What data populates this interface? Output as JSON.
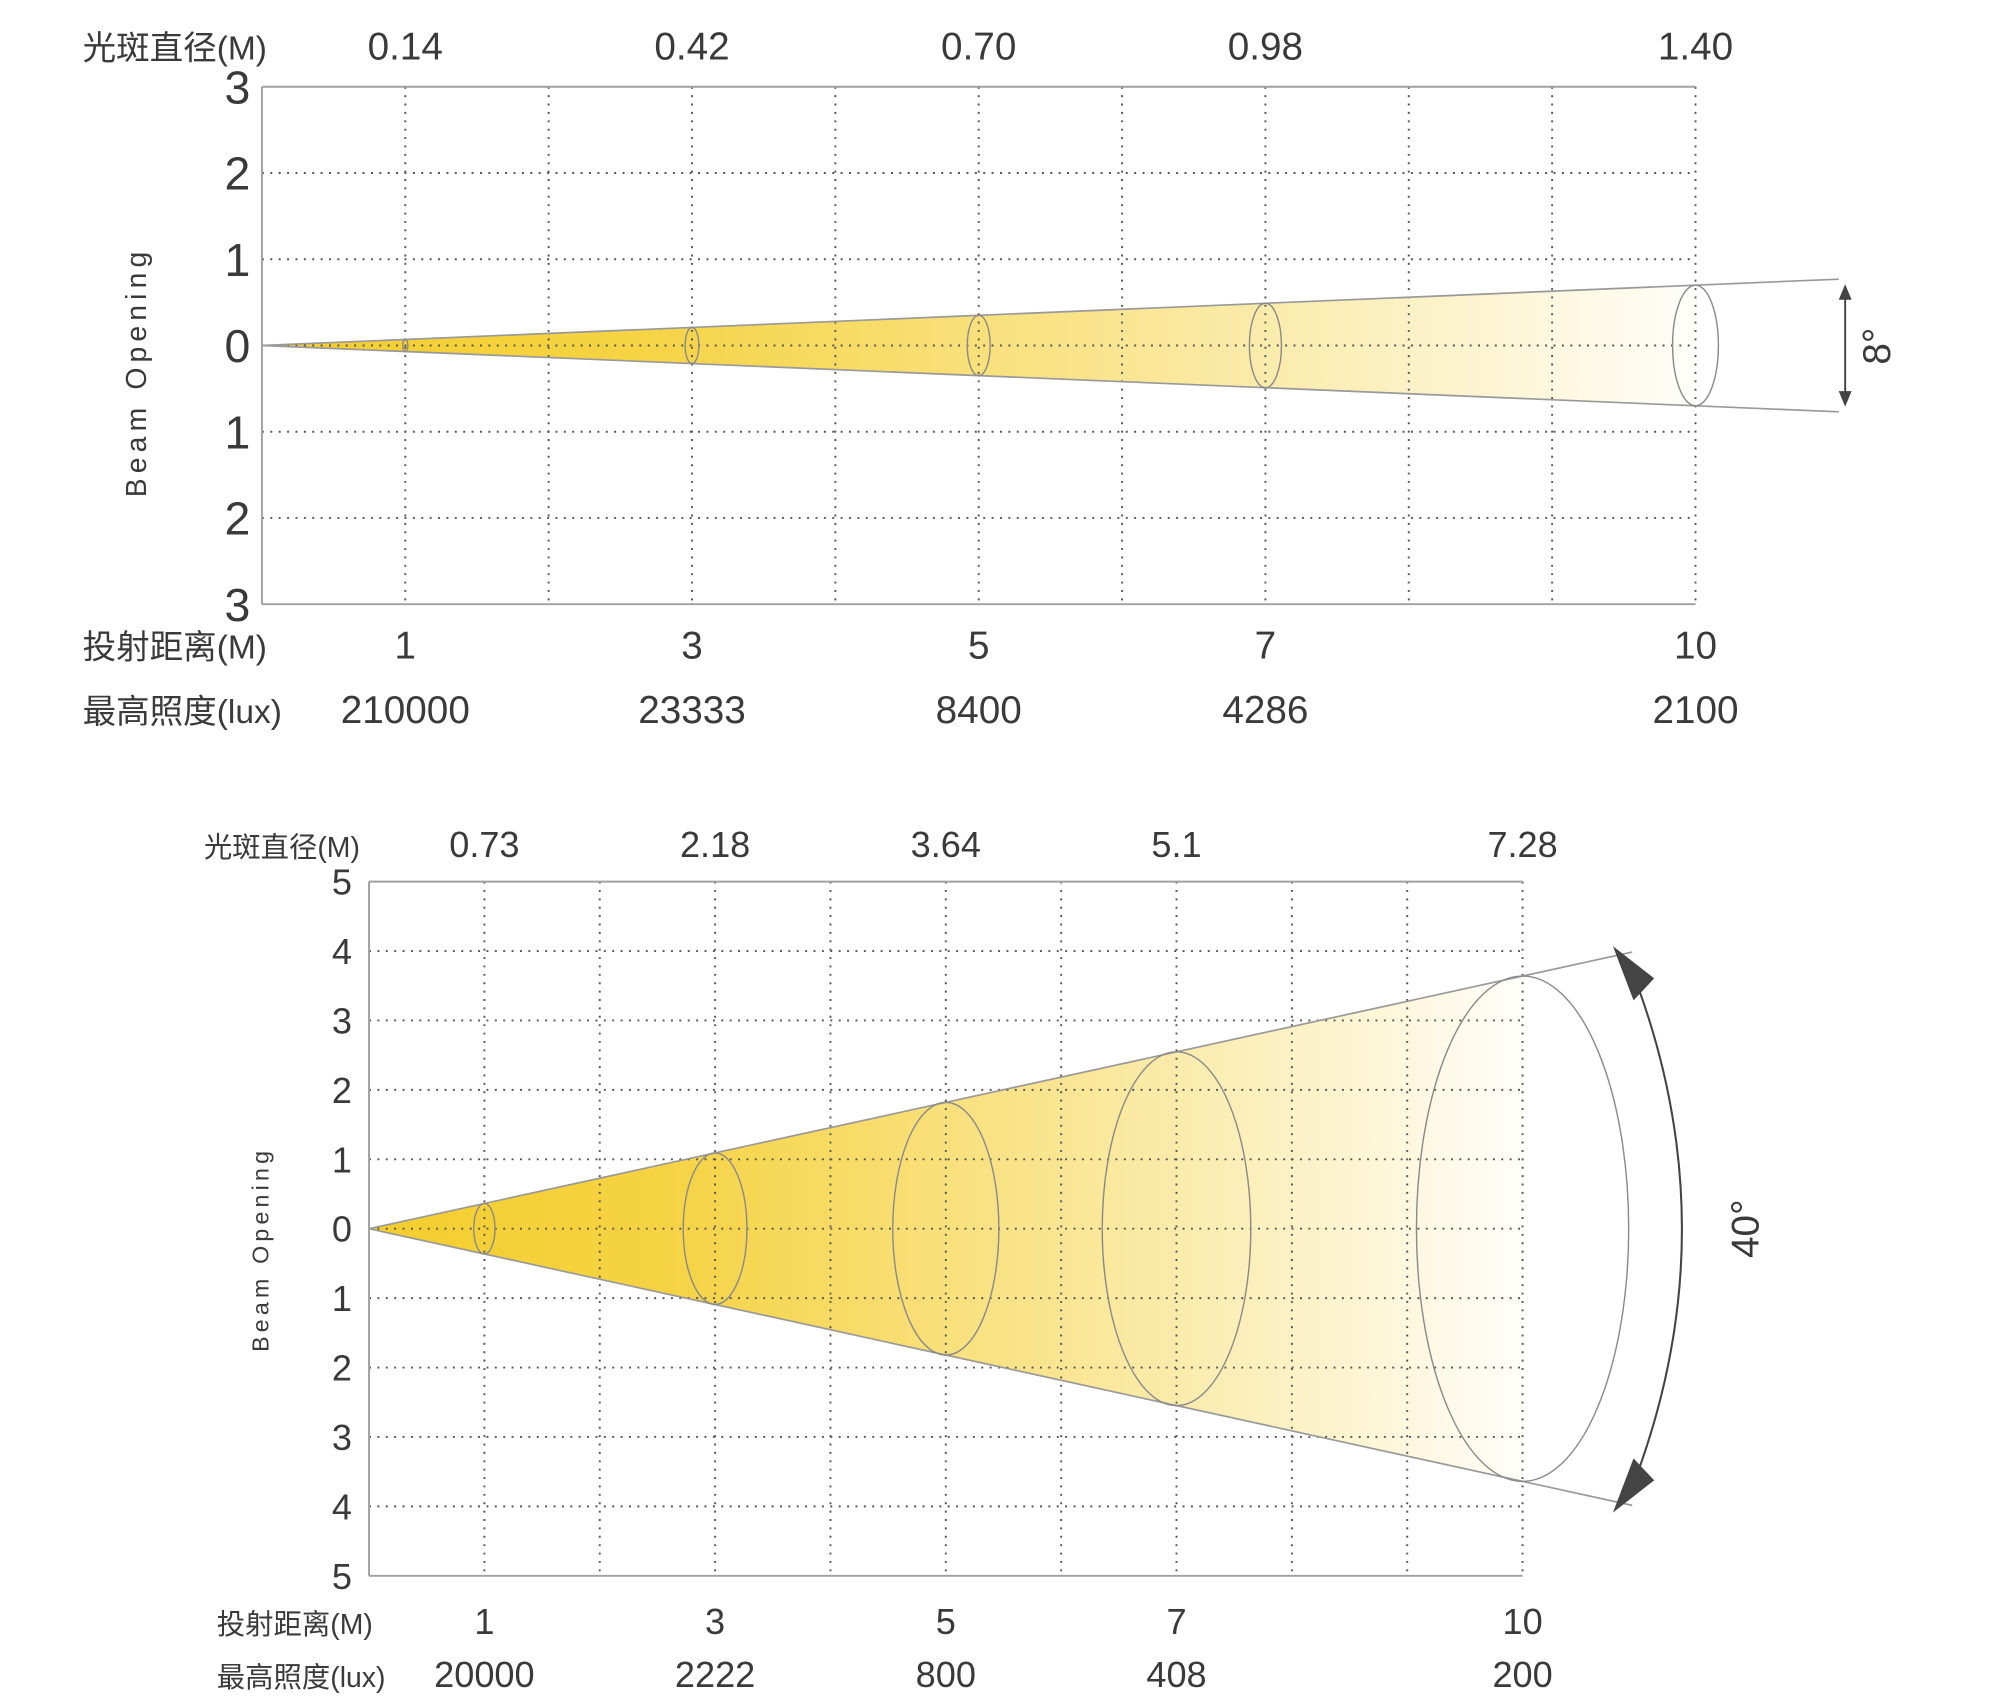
{
  "chart_data": [
    {
      "type": "beam-diagram",
      "spot_label": "光斑直径(M)",
      "distance_label": "投射距离(M)",
      "lux_label": "最高照度(lux)",
      "ylabel": "Beam Opening",
      "beam_angle_label": "8°",
      "beam_angle_deg": 8,
      "xlim": [
        0,
        10
      ],
      "ylim": [
        -3,
        3
      ],
      "y_ticks": [
        "3",
        "2",
        "1",
        "0",
        "1",
        "2",
        "3"
      ],
      "distances": [
        1,
        3,
        5,
        7,
        10
      ],
      "distance_labels": [
        "1",
        "3",
        "5",
        "7",
        "10"
      ],
      "spot_diameters": [
        "0.14",
        "0.42",
        "0.70",
        "0.98",
        "1.40"
      ],
      "lux": [
        "210000",
        "23333",
        "8400",
        "4286",
        "2100"
      ],
      "grid": true,
      "colors": {
        "beam_start": "#F4CE2E",
        "beam_end": "#FFFFFF",
        "grid": "#555555",
        "axis": "#A0A0A0"
      }
    },
    {
      "type": "beam-diagram",
      "spot_label": "光斑直径(M)",
      "distance_label": "投射距离(M)",
      "lux_label": "最高照度(lux)",
      "ylabel": "Beam Opening",
      "beam_angle_label": "40°",
      "beam_angle_deg": 40,
      "xlim": [
        0,
        10
      ],
      "ylim": [
        -5,
        5
      ],
      "y_ticks": [
        "5",
        "4",
        "3",
        "2",
        "1",
        "0",
        "1",
        "2",
        "3",
        "4",
        "5"
      ],
      "distances": [
        1,
        3,
        5,
        7,
        10
      ],
      "distance_labels": [
        "1",
        "3",
        "5",
        "7",
        "10"
      ],
      "spot_diameters": [
        "0.73",
        "2.18",
        "3.64",
        "5.1",
        "7.28"
      ],
      "lux": [
        "20000",
        "2222",
        "800",
        "408",
        "200"
      ],
      "grid": true,
      "colors": {
        "beam_start": "#F4CE2E",
        "beam_end": "#FFFFFF",
        "grid": "#555555",
        "axis": "#A0A0A0"
      }
    }
  ]
}
